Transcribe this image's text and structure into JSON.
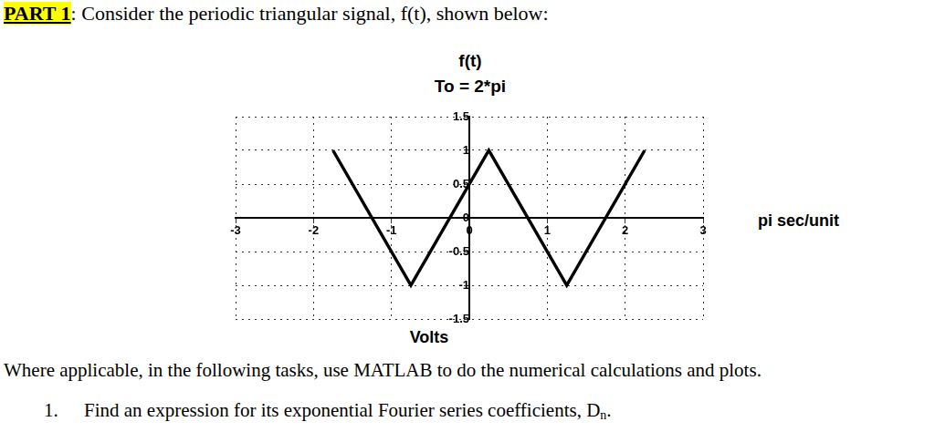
{
  "chart_data": {
    "type": "line",
    "title": "f(t)",
    "subtitle": "To = 2*pi",
    "x_label": "pi sec/unit",
    "y_label": "Volts",
    "x": [
      -1.75,
      -0.75,
      0.25,
      1.25,
      2.25
    ],
    "values": [
      1,
      -1,
      1,
      -1,
      1
    ],
    "color": "#000000",
    "line_style": "solid",
    "marker": "none",
    "xlim": [
      -3,
      3
    ],
    "xticks": [
      -3,
      -2,
      -1,
      0,
      1,
      2,
      3
    ],
    "ylim": [
      -1.5,
      1.5
    ],
    "yticks": [
      -1.5,
      -1,
      -0.5,
      0,
      0.5,
      1,
      1.5
    ],
    "grid": true
  },
  "text": {
    "heading_label": "PART 1",
    "heading": ": Consider the periodic triangular signal, f(t), shown below:",
    "instruction": "Where applicable, in the following tasks, use MATLAB to do the numerical calculations and plots.",
    "task_number": "1.",
    "task": "Find an expression for its exponential Fourier series coefficients, D",
    "task_subscript": "n",
    "task_end": "."
  }
}
